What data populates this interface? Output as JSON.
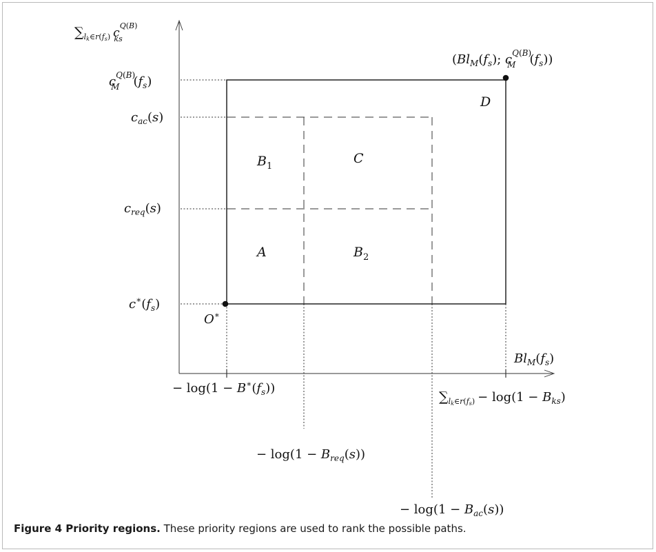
{
  "diagram": {
    "y_axis_label": "Σ_{l_k∈r(f_s)} c_{ks}^{Q(B)}",
    "x_axis_label": "Bl_M(f_s)",
    "y_ticks": {
      "c_max": "c_M^{Q(B)}(f_s)",
      "c_ac": "c_ac(s)",
      "c_req": "c_req(s)",
      "c_star": "c*(f_s)"
    },
    "x_ticks": {
      "b_star": "−log(1 − B*(f_s))",
      "b_req": "−log(1 − B_req(s))",
      "b_ac": "−log(1 − B_ac(s))",
      "b_max": "Σ_{l_k∈r(f_s)} −log(1 − B_ks)"
    },
    "points": {
      "origin_label": "O*",
      "max_point_label": "(Bl_M(f_s); c_M^{Q(B)}(f_s))"
    },
    "regions": {
      "A": "A",
      "B1": "B1",
      "B2": "B2",
      "C": "C",
      "D": "D"
    }
  },
  "caption": {
    "title": "Figure 4 Priority regions.",
    "text": " These priority regions are used to rank the possible paths."
  }
}
